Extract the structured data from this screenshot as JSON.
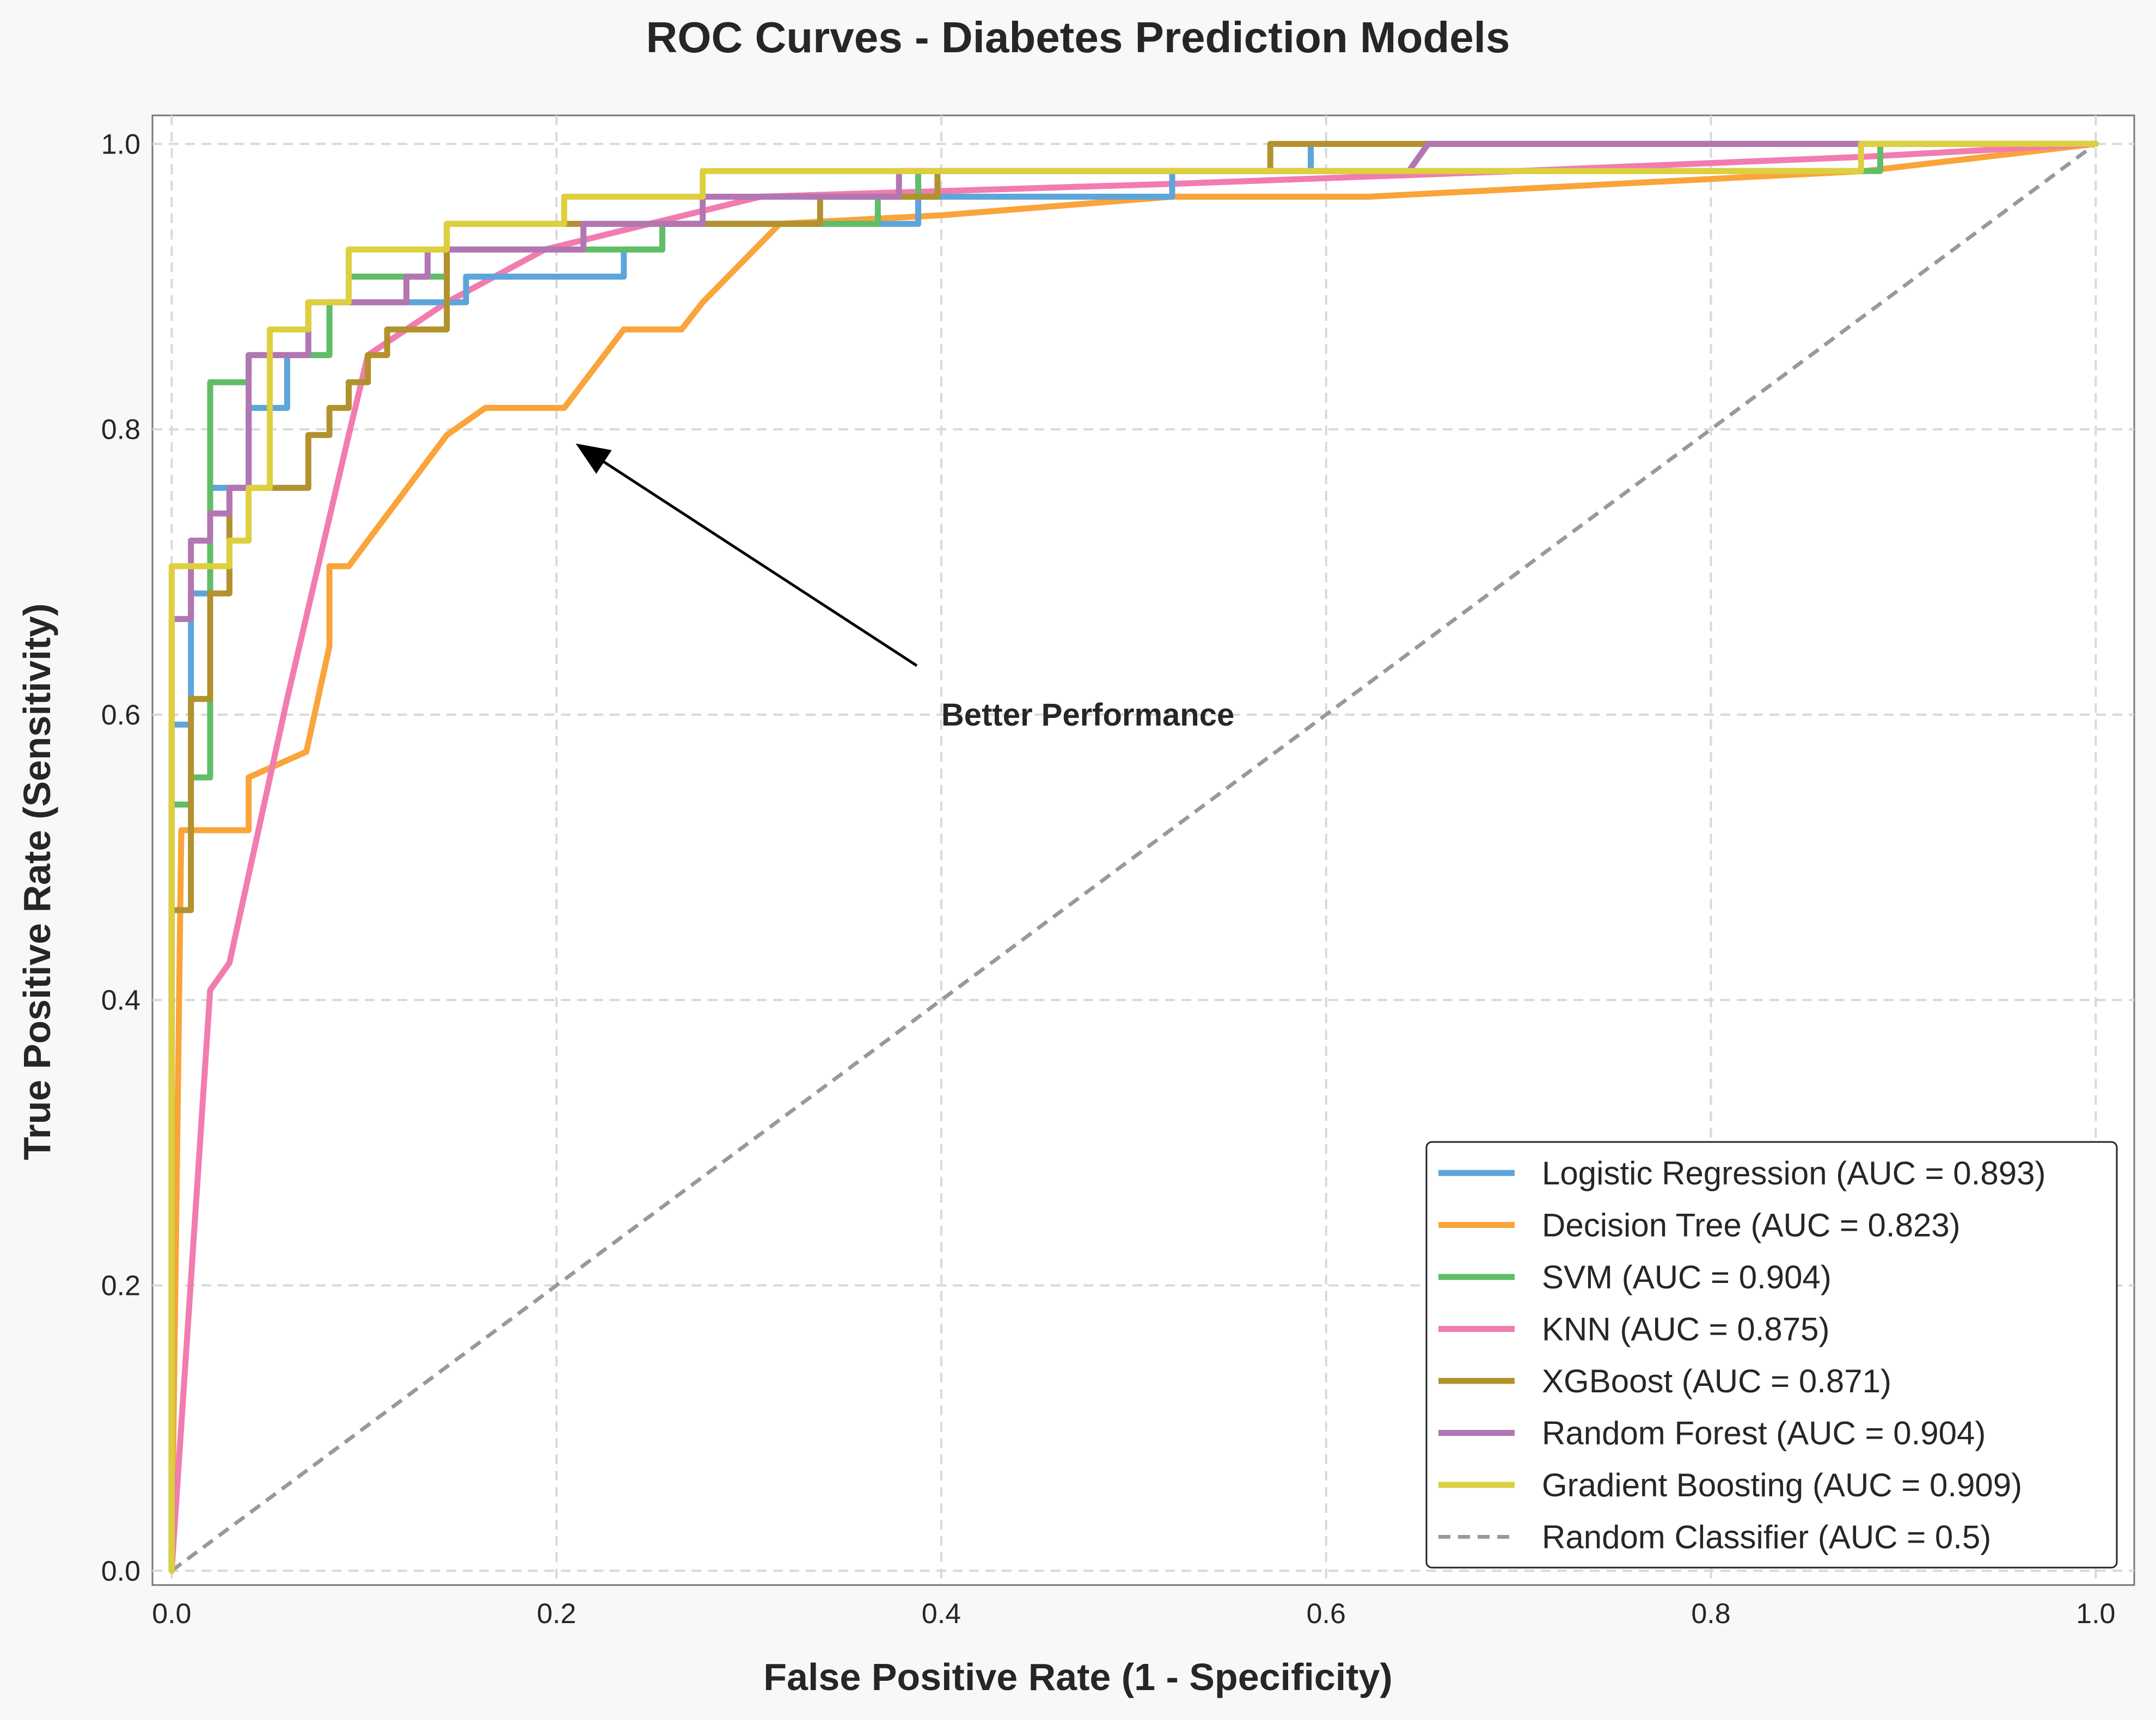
{
  "chart_data": {
    "type": "line",
    "title": "ROC Curves - Diabetes Prediction Models",
    "xlabel": "False Positive Rate (1 - Specificity)",
    "ylabel": "True Positive Rate (Sensitivity)",
    "xlim": [
      -0.01,
      1.02
    ],
    "ylim": [
      -0.01,
      1.02
    ],
    "x_ticks": [
      "0.0",
      "0.2",
      "0.4",
      "0.6",
      "0.8",
      "1.0"
    ],
    "y_ticks": [
      "0.0",
      "0.2",
      "0.4",
      "0.6",
      "0.8",
      "1.0"
    ],
    "grid": true,
    "legend_position": "lower-right",
    "annotation": {
      "text": "Better Performance",
      "text_x": 0.4,
      "text_y": 0.6,
      "arrow_to_x": 0.21,
      "arrow_to_y": 0.79
    },
    "series": [
      {
        "name": "Logistic Regression (AUC = 0.893)",
        "color": "#5da5da",
        "points": [
          [
            0,
            0
          ],
          [
            0,
            0.593
          ],
          [
            0.01,
            0.593
          ],
          [
            0.01,
            0.685
          ],
          [
            0.02,
            0.685
          ],
          [
            0.02,
            0.759
          ],
          [
            0.04,
            0.759
          ],
          [
            0.04,
            0.815
          ],
          [
            0.06,
            0.815
          ],
          [
            0.06,
            0.852
          ],
          [
            0.082,
            0.852
          ],
          [
            0.082,
            0.889
          ],
          [
            0.153,
            0.889
          ],
          [
            0.153,
            0.907
          ],
          [
            0.235,
            0.907
          ],
          [
            0.235,
            0.926
          ],
          [
            0.255,
            0.926
          ],
          [
            0.255,
            0.944
          ],
          [
            0.388,
            0.944
          ],
          [
            0.388,
            0.963
          ],
          [
            0.52,
            0.963
          ],
          [
            0.52,
            0.981
          ],
          [
            0.592,
            0.981
          ],
          [
            0.592,
            1.0
          ],
          [
            1.0,
            1.0
          ]
        ]
      },
      {
        "name": "Decision Tree (AUC = 0.823)",
        "color": "#faa43a",
        "points": [
          [
            0,
            0
          ],
          [
            0.005,
            0.519
          ],
          [
            0.04,
            0.519
          ],
          [
            0.04,
            0.556
          ],
          [
            0.07,
            0.574
          ],
          [
            0.082,
            0.648
          ],
          [
            0.082,
            0.704
          ],
          [
            0.092,
            0.704
          ],
          [
            0.143,
            0.796
          ],
          [
            0.163,
            0.815
          ],
          [
            0.204,
            0.815
          ],
          [
            0.235,
            0.87
          ],
          [
            0.265,
            0.87
          ],
          [
            0.276,
            0.889
          ],
          [
            0.316,
            0.944
          ],
          [
            0.4,
            0.95
          ],
          [
            0.52,
            0.963
          ],
          [
            0.622,
            0.963
          ],
          [
            0.88,
            0.981
          ],
          [
            1.0,
            1.0
          ]
        ]
      },
      {
        "name": "SVM (AUC = 0.904)",
        "color": "#60bd68",
        "points": [
          [
            0,
            0
          ],
          [
            0,
            0.537
          ],
          [
            0.01,
            0.537
          ],
          [
            0.01,
            0.556
          ],
          [
            0.02,
            0.556
          ],
          [
            0.02,
            0.833
          ],
          [
            0.04,
            0.833
          ],
          [
            0.04,
            0.852
          ],
          [
            0.082,
            0.852
          ],
          [
            0.082,
            0.889
          ],
          [
            0.092,
            0.889
          ],
          [
            0.092,
            0.907
          ],
          [
            0.143,
            0.907
          ],
          [
            0.143,
            0.926
          ],
          [
            0.255,
            0.926
          ],
          [
            0.255,
            0.944
          ],
          [
            0.367,
            0.944
          ],
          [
            0.367,
            0.963
          ],
          [
            0.388,
            0.963
          ],
          [
            0.388,
            0.981
          ],
          [
            0.888,
            0.981
          ],
          [
            0.888,
            1.0
          ],
          [
            1.0,
            1.0
          ]
        ]
      },
      {
        "name": "KNN (AUC = 0.875)",
        "color": "#f17cb0",
        "points": [
          [
            0,
            0
          ],
          [
            0.02,
            0.407
          ],
          [
            0.03,
            0.426
          ],
          [
            0.06,
            0.611
          ],
          [
            0.092,
            0.796
          ],
          [
            0.102,
            0.852
          ],
          [
            0.143,
            0.889
          ],
          [
            0.194,
            0.926
          ],
          [
            0.306,
            0.963
          ],
          [
            0.52,
            0.972
          ],
          [
            0.7,
            0.981
          ],
          [
            0.88,
            0.991
          ],
          [
            1.0,
            1.0
          ]
        ]
      },
      {
        "name": "XGBoost (AUC = 0.871)",
        "color": "#b2912f",
        "points": [
          [
            0,
            0
          ],
          [
            0,
            0.463
          ],
          [
            0.01,
            0.463
          ],
          [
            0.01,
            0.611
          ],
          [
            0.02,
            0.611
          ],
          [
            0.02,
            0.685
          ],
          [
            0.03,
            0.685
          ],
          [
            0.03,
            0.759
          ],
          [
            0.071,
            0.759
          ],
          [
            0.071,
            0.796
          ],
          [
            0.082,
            0.796
          ],
          [
            0.082,
            0.815
          ],
          [
            0.092,
            0.815
          ],
          [
            0.092,
            0.833
          ],
          [
            0.102,
            0.833
          ],
          [
            0.102,
            0.852
          ],
          [
            0.112,
            0.852
          ],
          [
            0.112,
            0.87
          ],
          [
            0.143,
            0.87
          ],
          [
            0.143,
            0.944
          ],
          [
            0.337,
            0.944
          ],
          [
            0.337,
            0.963
          ],
          [
            0.398,
            0.963
          ],
          [
            0.398,
            0.981
          ],
          [
            0.571,
            0.981
          ],
          [
            0.571,
            1.0
          ],
          [
            1.0,
            1.0
          ]
        ]
      },
      {
        "name": "Random Forest (AUC = 0.904)",
        "color": "#b276b2",
        "points": [
          [
            0,
            0
          ],
          [
            0,
            0.667
          ],
          [
            0.01,
            0.667
          ],
          [
            0.01,
            0.722
          ],
          [
            0.02,
            0.722
          ],
          [
            0.02,
            0.741
          ],
          [
            0.03,
            0.741
          ],
          [
            0.03,
            0.759
          ],
          [
            0.04,
            0.759
          ],
          [
            0.04,
            0.852
          ],
          [
            0.071,
            0.852
          ],
          [
            0.071,
            0.889
          ],
          [
            0.122,
            0.889
          ],
          [
            0.122,
            0.907
          ],
          [
            0.133,
            0.907
          ],
          [
            0.133,
            0.926
          ],
          [
            0.214,
            0.926
          ],
          [
            0.214,
            0.944
          ],
          [
            0.276,
            0.944
          ],
          [
            0.276,
            0.963
          ],
          [
            0.378,
            0.963
          ],
          [
            0.378,
            0.981
          ],
          [
            0.643,
            0.981
          ],
          [
            0.653,
            1.0
          ],
          [
            1.0,
            1.0
          ]
        ]
      },
      {
        "name": "Gradient Boosting (AUC = 0.909)",
        "color": "#decf3f",
        "points": [
          [
            0,
            0
          ],
          [
            0,
            0.704
          ],
          [
            0.03,
            0.704
          ],
          [
            0.03,
            0.722
          ],
          [
            0.04,
            0.722
          ],
          [
            0.04,
            0.759
          ],
          [
            0.051,
            0.759
          ],
          [
            0.051,
            0.87
          ],
          [
            0.071,
            0.87
          ],
          [
            0.071,
            0.889
          ],
          [
            0.092,
            0.889
          ],
          [
            0.092,
            0.926
          ],
          [
            0.143,
            0.926
          ],
          [
            0.143,
            0.944
          ],
          [
            0.204,
            0.944
          ],
          [
            0.204,
            0.963
          ],
          [
            0.276,
            0.963
          ],
          [
            0.276,
            0.981
          ],
          [
            0.878,
            0.981
          ],
          [
            0.878,
            1.0
          ],
          [
            1.0,
            1.0
          ]
        ]
      },
      {
        "name": "Random Classifier (AUC = 0.5)",
        "color": "#999999",
        "dashed": true,
        "points": [
          [
            0,
            0
          ],
          [
            1.0,
            1.0
          ]
        ]
      }
    ]
  }
}
